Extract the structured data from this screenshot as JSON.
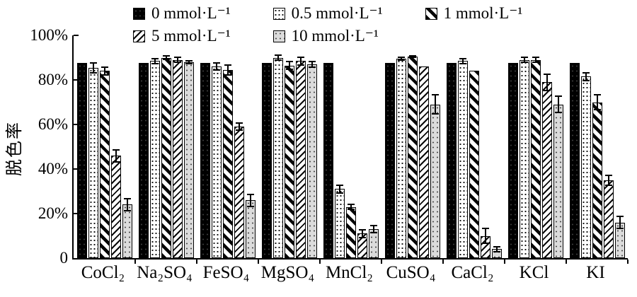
{
  "figure": {
    "background_color": "#ffffff",
    "ink_color": "#000000"
  },
  "chart_data": {
    "type": "bar",
    "title": "",
    "xlabel": "",
    "ylabel": "脱色率",
    "ylim": [
      0,
      100
    ],
    "grid": false,
    "legend_position": "top",
    "yticks": [
      {
        "value": 0,
        "label": "0"
      },
      {
        "value": 20,
        "label": "20%"
      },
      {
        "value": 40,
        "label": "40%"
      },
      {
        "value": 60,
        "label": "60%"
      },
      {
        "value": 80,
        "label": "80%"
      },
      {
        "value": 100,
        "label": "100%"
      }
    ],
    "categories": [
      "CoCl₂",
      "Na₂SO₄",
      "FeSO₄",
      "MgSO₄",
      "MnCl₂",
      "CuSO₄",
      "CaCl₂",
      "KCl",
      "KI"
    ],
    "series": [
      {
        "name": "0 mmol·L⁻¹",
        "pattern": "solid-black",
        "color": "#000000",
        "values": [
          87.5,
          87.5,
          87.5,
          87.5,
          87.5,
          87.5,
          87.5,
          87.5,
          87.5
        ],
        "errors": [
          0,
          0,
          0,
          0,
          0,
          0,
          0,
          0,
          0
        ]
      },
      {
        "name": "0.5 mmol·L⁻¹",
        "pattern": "dots-white",
        "color": "#ffffff",
        "values": [
          85.5,
          88.5,
          86,
          90,
          31,
          89.5,
          88.5,
          89,
          81.5
        ],
        "errors": [
          2.5,
          1.5,
          2,
          1.5,
          2,
          1,
          1.5,
          1.5,
          2
        ]
      },
      {
        "name": "1 mmol·L⁻¹",
        "pattern": "hatch-backslash-bold",
        "color": "#000000",
        "values": [
          84,
          90,
          84.5,
          86.5,
          23,
          90.5,
          84,
          89,
          70
        ],
        "errors": [
          2,
          1,
          2.5,
          2,
          1.5,
          0.5,
          0,
          1.5,
          3.5
        ]
      },
      {
        "name": "5 mmol·L⁻¹",
        "pattern": "hatch-slash-fine",
        "color": "#000000",
        "values": [
          46,
          89,
          59,
          88.5,
          11,
          86,
          10,
          79,
          35
        ],
        "errors": [
          3,
          1.5,
          2,
          2,
          2,
          0,
          3.5,
          4,
          2.5
        ]
      },
      {
        "name": "10 mmol·L⁻¹",
        "pattern": "dots-gray",
        "color": "#dbdbdb",
        "values": [
          24,
          88,
          26,
          87,
          13,
          69,
          4,
          69,
          16
        ],
        "errors": [
          3,
          1,
          3,
          1.5,
          2,
          4.5,
          1.5,
          4,
          3
        ]
      }
    ],
    "legend_rows": [
      [
        0,
        1,
        2
      ],
      [
        3,
        4
      ]
    ]
  }
}
